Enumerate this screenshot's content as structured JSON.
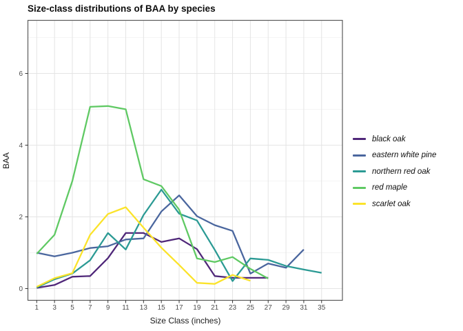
{
  "chart_data": {
    "type": "line",
    "title": "Size-class distributions of BAA by species",
    "xlabel": "Size Class (inches)",
    "ylabel": "BAA",
    "x_tick_labels": [
      "1",
      "3",
      "5",
      "7",
      "9",
      "11",
      "13",
      "15",
      "17",
      "19",
      "21",
      "23",
      "25",
      "27",
      "29",
      "31",
      "35"
    ],
    "y_ticks": [
      0,
      2,
      4,
      6
    ],
    "y_minor_ticks": [
      1,
      3,
      5,
      7
    ],
    "ylim": [
      -0.35,
      7.5
    ],
    "grid": "major+minor",
    "legend_position": "right",
    "series": [
      {
        "name": "black oak",
        "color": "#4F2779",
        "values": [
          0.02,
          0.1,
          0.33,
          0.35,
          0.85,
          1.55,
          1.55,
          1.3,
          1.4,
          1.1,
          0.35,
          0.3,
          0.3,
          0.3,
          null,
          null,
          null
        ]
      },
      {
        "name": "eastern white pine",
        "color": "#4A669E",
        "values": [
          1.0,
          0.9,
          1.0,
          1.13,
          1.18,
          1.37,
          1.4,
          2.15,
          2.6,
          2.02,
          1.77,
          1.61,
          0.42,
          0.7,
          0.58,
          1.09,
          null
        ]
      },
      {
        "name": "northern red oak",
        "color": "#2B9A94",
        "values": [
          0.03,
          0.26,
          0.42,
          0.79,
          1.55,
          1.09,
          2.05,
          2.76,
          2.09,
          1.9,
          1.08,
          0.21,
          0.84,
          0.8,
          0.63,
          0.53,
          0.44
        ]
      },
      {
        "name": "red maple",
        "color": "#5FC963",
        "values": [
          0.97,
          1.5,
          3.0,
          5.07,
          5.09,
          5.0,
          3.05,
          2.86,
          2.2,
          0.84,
          0.74,
          0.88,
          0.55,
          0.28,
          null,
          null,
          null
        ]
      },
      {
        "name": "scarlet oak",
        "color": "#FBE32A",
        "values": [
          0.05,
          0.29,
          0.43,
          1.5,
          2.08,
          2.27,
          1.7,
          1.14,
          0.66,
          0.16,
          0.13,
          0.38,
          0.22,
          null,
          null,
          null,
          null
        ]
      }
    ],
    "style": {
      "panel_border_color": "#5a5a5a",
      "grid_major_color": "#e4e4e4",
      "grid_minor_color": "#f1f1f1",
      "tick_color": "#333333",
      "tick_label_color": "#4d4d4d"
    }
  }
}
